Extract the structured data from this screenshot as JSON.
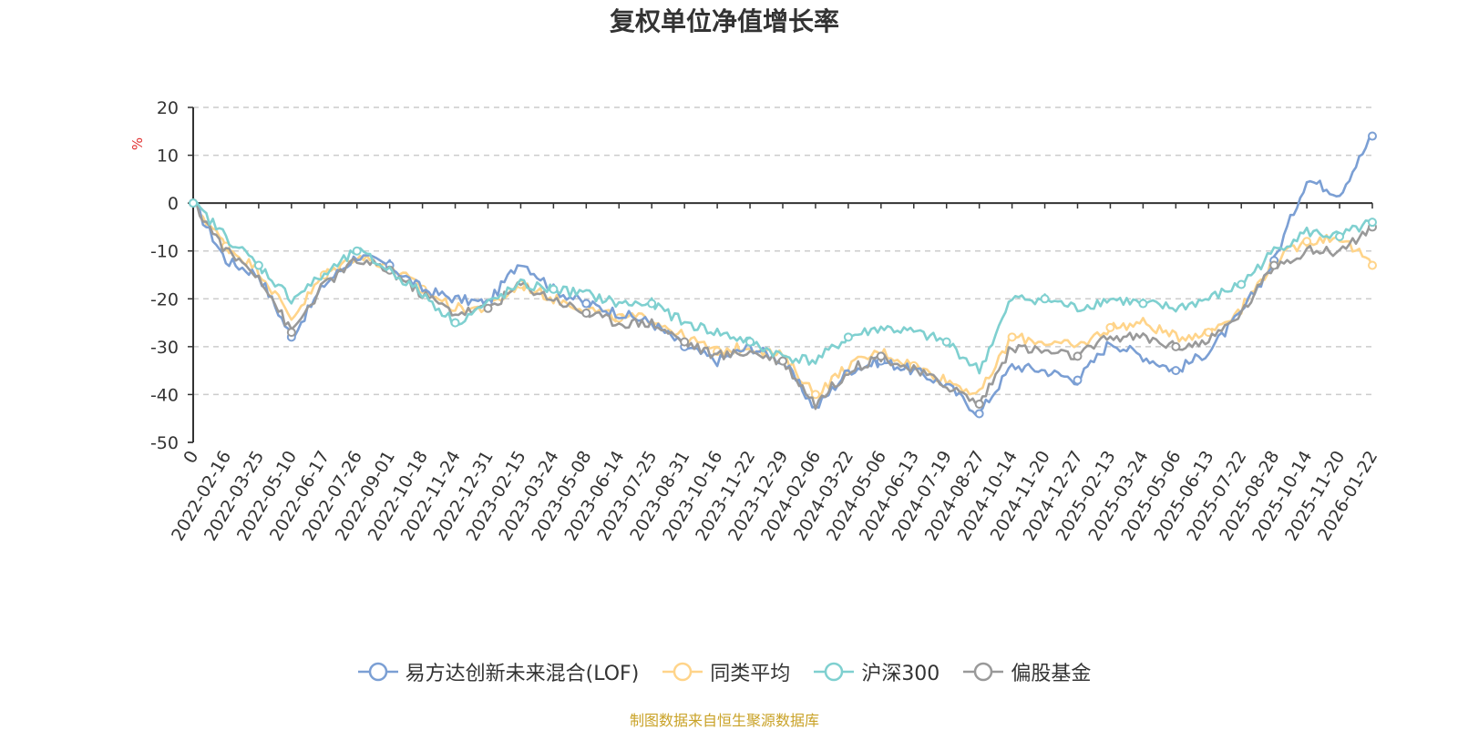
{
  "chart_data": {
    "type": "line",
    "title": "复权单位净值增长率",
    "ylabel": "%",
    "ylim": [
      -50,
      20
    ],
    "yticks": [
      20,
      10,
      0,
      -10,
      -20,
      -30,
      -40,
      -50
    ],
    "grid": true,
    "legend_position": "bottom",
    "x": [
      "0",
      "2022-02-16",
      "2022-03-25",
      "2022-05-10",
      "2022-06-17",
      "2022-07-26",
      "2022-09-01",
      "2022-10-18",
      "2022-11-24",
      "2022-12-31",
      "2023-02-15",
      "2023-03-24",
      "2023-05-08",
      "2023-06-14",
      "2023-07-25",
      "2023-08-31",
      "2023-10-16",
      "2023-11-22",
      "2023-12-29",
      "2024-02-06",
      "2024-03-22",
      "2024-05-06",
      "2024-06-13",
      "2024-07-19",
      "2024-08-27",
      "2024-10-14",
      "2024-11-20",
      "2024-12-27",
      "2025-02-13",
      "2025-03-24",
      "2025-05-06",
      "2025-06-13",
      "2025-07-22",
      "2025-08-28",
      "2025-10-14",
      "2025-11-20",
      "2026-01-22"
    ],
    "series": [
      {
        "name": "易方达创新未来混合(LOF)",
        "color": "#7b9fd4",
        "values": [
          0,
          -12,
          -15,
          -28,
          -17,
          -11,
          -13,
          -18,
          -20,
          -21,
          -12,
          -18,
          -21,
          -23,
          -25,
          -30,
          -33,
          -30,
          -33,
          -43,
          -35,
          -33,
          -35,
          -38,
          -44,
          -34,
          -35,
          -37,
          -29,
          -32,
          -35,
          -31,
          -23,
          -12,
          5,
          2,
          14
        ]
      },
      {
        "name": "同类平均",
        "color": "#ffd48a",
        "values": [
          0,
          -9,
          -14,
          -24,
          -15,
          -11,
          -13,
          -18,
          -22,
          -22,
          -17,
          -20,
          -22,
          -24,
          -24,
          -28,
          -31,
          -30,
          -32,
          -40,
          -34,
          -31,
          -34,
          -37,
          -40,
          -28,
          -29,
          -30,
          -26,
          -25,
          -28,
          -27,
          -22,
          -12,
          -8,
          -7,
          -13
        ]
      },
      {
        "name": "沪深300",
        "color": "#7fd0d0",
        "values": [
          0,
          -7,
          -13,
          -20,
          -15,
          -10,
          -14,
          -19,
          -25,
          -21,
          -17,
          -18,
          -19,
          -21,
          -21,
          -25,
          -27,
          -29,
          -32,
          -33,
          -28,
          -26,
          -27,
          -29,
          -35,
          -20,
          -20,
          -22,
          -20,
          -21,
          -22,
          -20,
          -17,
          -10,
          -6,
          -7,
          -4
        ]
      },
      {
        "name": "偏股基金",
        "color": "#999999",
        "values": [
          0,
          -10,
          -15,
          -27,
          -17,
          -12,
          -14,
          -19,
          -23,
          -22,
          -17,
          -20,
          -23,
          -25,
          -25,
          -29,
          -32,
          -31,
          -33,
          -42,
          -35,
          -32,
          -35,
          -38,
          -42,
          -30,
          -31,
          -32,
          -28,
          -28,
          -30,
          -29,
          -23,
          -13,
          -10,
          -10,
          -5
        ]
      }
    ]
  },
  "footer": {
    "source": "制图数据来自恒生聚源数据库"
  }
}
